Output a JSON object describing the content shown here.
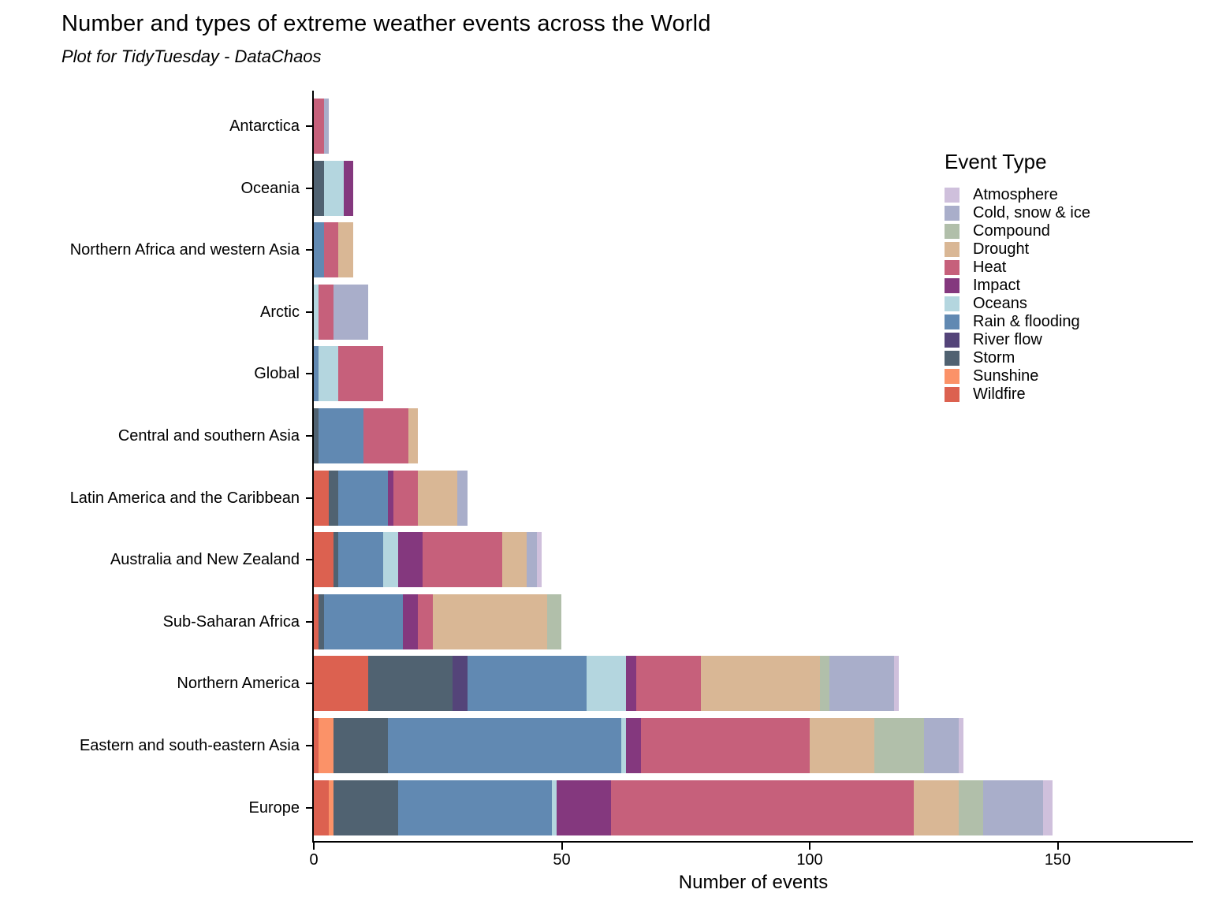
{
  "title": "Number and types of extreme weather events across the World",
  "subtitle": "Plot for TidyTuesday - DataChaos",
  "x_axis": {
    "label": "Number of events",
    "ticks": [
      0,
      50,
      100,
      150
    ]
  },
  "legend": {
    "title": "Event Type"
  },
  "chart_data": {
    "type": "bar",
    "orientation": "horizontal",
    "stacked": true,
    "title": "Number and types of extreme weather events across the World",
    "subtitle": "Plot for TidyTuesday - DataChaos",
    "xlabel": "Number of events",
    "ylabel": "",
    "xlim": [
      0,
      178
    ],
    "x_ticks": [
      0,
      50,
      100,
      150
    ],
    "grid": false,
    "legend_title": "Event Type",
    "legend_position": "right-top",
    "event_types": [
      {
        "name": "Atmosphere",
        "color": "#cfc0dc"
      },
      {
        "name": "Cold, snow & ice",
        "color": "#a9aeca"
      },
      {
        "name": "Compound",
        "color": "#b1bfaa"
      },
      {
        "name": "Drought",
        "color": "#d9b795"
      },
      {
        "name": "Heat",
        "color": "#c6607b"
      },
      {
        "name": "Impact",
        "color": "#84387e"
      },
      {
        "name": "Oceans",
        "color": "#b4d6df"
      },
      {
        "name": "Rain & flooding",
        "color": "#6189b2"
      },
      {
        "name": "River flow",
        "color": "#544479"
      },
      {
        "name": "Storm",
        "color": "#506271"
      },
      {
        "name": "Sunshine",
        "color": "#fb9268"
      },
      {
        "name": "Wildfire",
        "color": "#dc6150"
      }
    ],
    "stack_order": [
      "Wildfire",
      "Sunshine",
      "Storm",
      "River flow",
      "Rain & flooding",
      "Oceans",
      "Impact",
      "Heat",
      "Drought",
      "Compound",
      "Cold, snow & ice",
      "Atmosphere"
    ],
    "categories": [
      "Antarctica",
      "Oceania",
      "Northern Africa and western Asia",
      "Arctic",
      "Global",
      "Central and southern Asia",
      "Latin America and the Caribbean",
      "Australia and New Zealand",
      "Sub-Saharan Africa",
      "Northern America",
      "Eastern and south-eastern Asia",
      "Europe"
    ],
    "bars": [
      {
        "region": "Antarctica",
        "total": 3,
        "segments": [
          {
            "type": "Heat",
            "value": 2
          },
          {
            "type": "Cold, snow & ice",
            "value": 1
          }
        ]
      },
      {
        "region": "Oceania",
        "total": 8,
        "segments": [
          {
            "type": "Storm",
            "value": 2
          },
          {
            "type": "Oceans",
            "value": 4
          },
          {
            "type": "Impact",
            "value": 2
          }
        ]
      },
      {
        "region": "Northern Africa and western Asia",
        "total": 8,
        "segments": [
          {
            "type": "Rain & flooding",
            "value": 2
          },
          {
            "type": "Heat",
            "value": 3
          },
          {
            "type": "Drought",
            "value": 3
          }
        ]
      },
      {
        "region": "Arctic",
        "total": 11,
        "segments": [
          {
            "type": "Oceans",
            "value": 1
          },
          {
            "type": "Heat",
            "value": 3
          },
          {
            "type": "Cold, snow & ice",
            "value": 7
          }
        ]
      },
      {
        "region": "Global",
        "total": 14,
        "segments": [
          {
            "type": "Rain & flooding",
            "value": 1
          },
          {
            "type": "Oceans",
            "value": 4
          },
          {
            "type": "Heat",
            "value": 9
          }
        ]
      },
      {
        "region": "Central and southern Asia",
        "total": 21,
        "segments": [
          {
            "type": "Storm",
            "value": 1
          },
          {
            "type": "Rain & flooding",
            "value": 9
          },
          {
            "type": "Heat",
            "value": 9
          },
          {
            "type": "Drought",
            "value": 2
          }
        ]
      },
      {
        "region": "Latin America and the Caribbean",
        "total": 31,
        "segments": [
          {
            "type": "Wildfire",
            "value": 3
          },
          {
            "type": "Storm",
            "value": 2
          },
          {
            "type": "Rain & flooding",
            "value": 10
          },
          {
            "type": "Impact",
            "value": 1
          },
          {
            "type": "Heat",
            "value": 5
          },
          {
            "type": "Drought",
            "value": 8
          },
          {
            "type": "Cold, snow & ice",
            "value": 2
          }
        ]
      },
      {
        "region": "Australia and New Zealand",
        "total": 46,
        "segments": [
          {
            "type": "Wildfire",
            "value": 4
          },
          {
            "type": "Storm",
            "value": 1
          },
          {
            "type": "Rain & flooding",
            "value": 9
          },
          {
            "type": "Oceans",
            "value": 3
          },
          {
            "type": "Impact",
            "value": 5
          },
          {
            "type": "Heat",
            "value": 16
          },
          {
            "type": "Drought",
            "value": 5
          },
          {
            "type": "Cold, snow & ice",
            "value": 2
          },
          {
            "type": "Atmosphere",
            "value": 1
          }
        ]
      },
      {
        "region": "Sub-Saharan Africa",
        "total": 50,
        "segments": [
          {
            "type": "Wildfire",
            "value": 1
          },
          {
            "type": "Storm",
            "value": 1
          },
          {
            "type": "Rain & flooding",
            "value": 16
          },
          {
            "type": "Impact",
            "value": 3
          },
          {
            "type": "Heat",
            "value": 3
          },
          {
            "type": "Drought",
            "value": 23
          },
          {
            "type": "Compound",
            "value": 3
          }
        ]
      },
      {
        "region": "Northern America",
        "total": 118,
        "segments": [
          {
            "type": "Wildfire",
            "value": 11
          },
          {
            "type": "Storm",
            "value": 17
          },
          {
            "type": "River flow",
            "value": 3
          },
          {
            "type": "Rain & flooding",
            "value": 24
          },
          {
            "type": "Oceans",
            "value": 8
          },
          {
            "type": "Impact",
            "value": 2
          },
          {
            "type": "Heat",
            "value": 13
          },
          {
            "type": "Drought",
            "value": 24
          },
          {
            "type": "Compound",
            "value": 2
          },
          {
            "type": "Cold, snow & ice",
            "value": 13
          },
          {
            "type": "Atmosphere",
            "value": 1
          }
        ]
      },
      {
        "region": "Eastern and south-eastern Asia",
        "total": 131,
        "segments": [
          {
            "type": "Wildfire",
            "value": 1
          },
          {
            "type": "Sunshine",
            "value": 3
          },
          {
            "type": "Storm",
            "value": 11
          },
          {
            "type": "Rain & flooding",
            "value": 47
          },
          {
            "type": "Oceans",
            "value": 1
          },
          {
            "type": "Impact",
            "value": 3
          },
          {
            "type": "Heat",
            "value": 34
          },
          {
            "type": "Drought",
            "value": 13
          },
          {
            "type": "Compound",
            "value": 10
          },
          {
            "type": "Cold, snow & ice",
            "value": 7
          },
          {
            "type": "Atmosphere",
            "value": 1
          }
        ]
      },
      {
        "region": "Europe",
        "total": 149,
        "segments": [
          {
            "type": "Wildfire",
            "value": 3
          },
          {
            "type": "Sunshine",
            "value": 1
          },
          {
            "type": "Storm",
            "value": 13
          },
          {
            "type": "Rain & flooding",
            "value": 31
          },
          {
            "type": "Oceans",
            "value": 1
          },
          {
            "type": "Impact",
            "value": 11
          },
          {
            "type": "Heat",
            "value": 61
          },
          {
            "type": "Drought",
            "value": 9
          },
          {
            "type": "Compound",
            "value": 5
          },
          {
            "type": "Cold, snow & ice",
            "value": 12
          },
          {
            "type": "Atmosphere",
            "value": 2
          }
        ]
      }
    ]
  }
}
